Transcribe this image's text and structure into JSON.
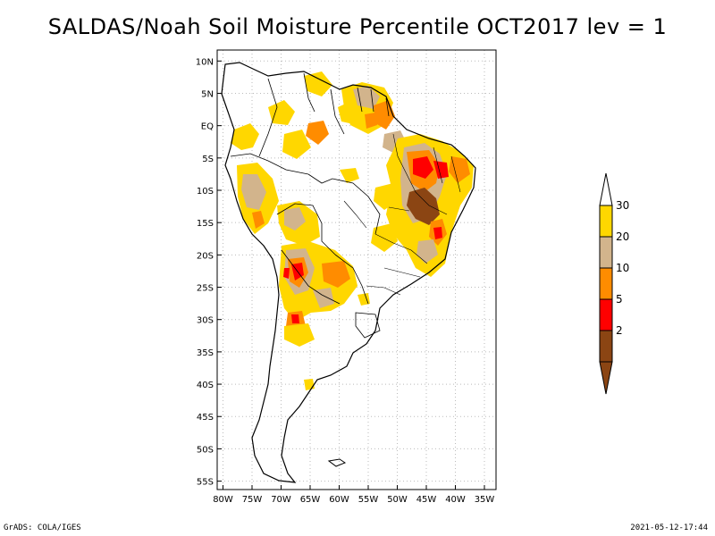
{
  "title": "SALDAS/Noah Soil Moisture Percentile OCT2017 lev = 1",
  "footer": {
    "left": "GrADS: COLA/IGES",
    "right": "2021-05-12-17:44"
  },
  "map": {
    "lat_labels": [
      "10N",
      "5N",
      "EQ",
      "5S",
      "10S",
      "15S",
      "20S",
      "25S",
      "30S",
      "35S",
      "40S",
      "45S",
      "50S",
      "55S"
    ],
    "lon_labels": [
      "80W",
      "75W",
      "70W",
      "65W",
      "60W",
      "55W",
      "50W",
      "45W",
      "40W",
      "35W"
    ]
  },
  "colorbar": {
    "labels": [
      "30",
      "20",
      "10",
      "5",
      "2"
    ],
    "colors": [
      "#ffd700",
      "#d2b48c",
      "#ff8c00",
      "#ff0000",
      "#8b4513"
    ],
    "top_arrow_color": "#ffffff",
    "bottom_arrow_color": "#8b4513"
  },
  "colors": {
    "frame": "#000000",
    "grid": "#bbbbbb",
    "yellow": "#ffd700",
    "tan": "#d2b48c",
    "orange": "#ff8c00",
    "red": "#ff0000",
    "brown": "#8b4513"
  }
}
